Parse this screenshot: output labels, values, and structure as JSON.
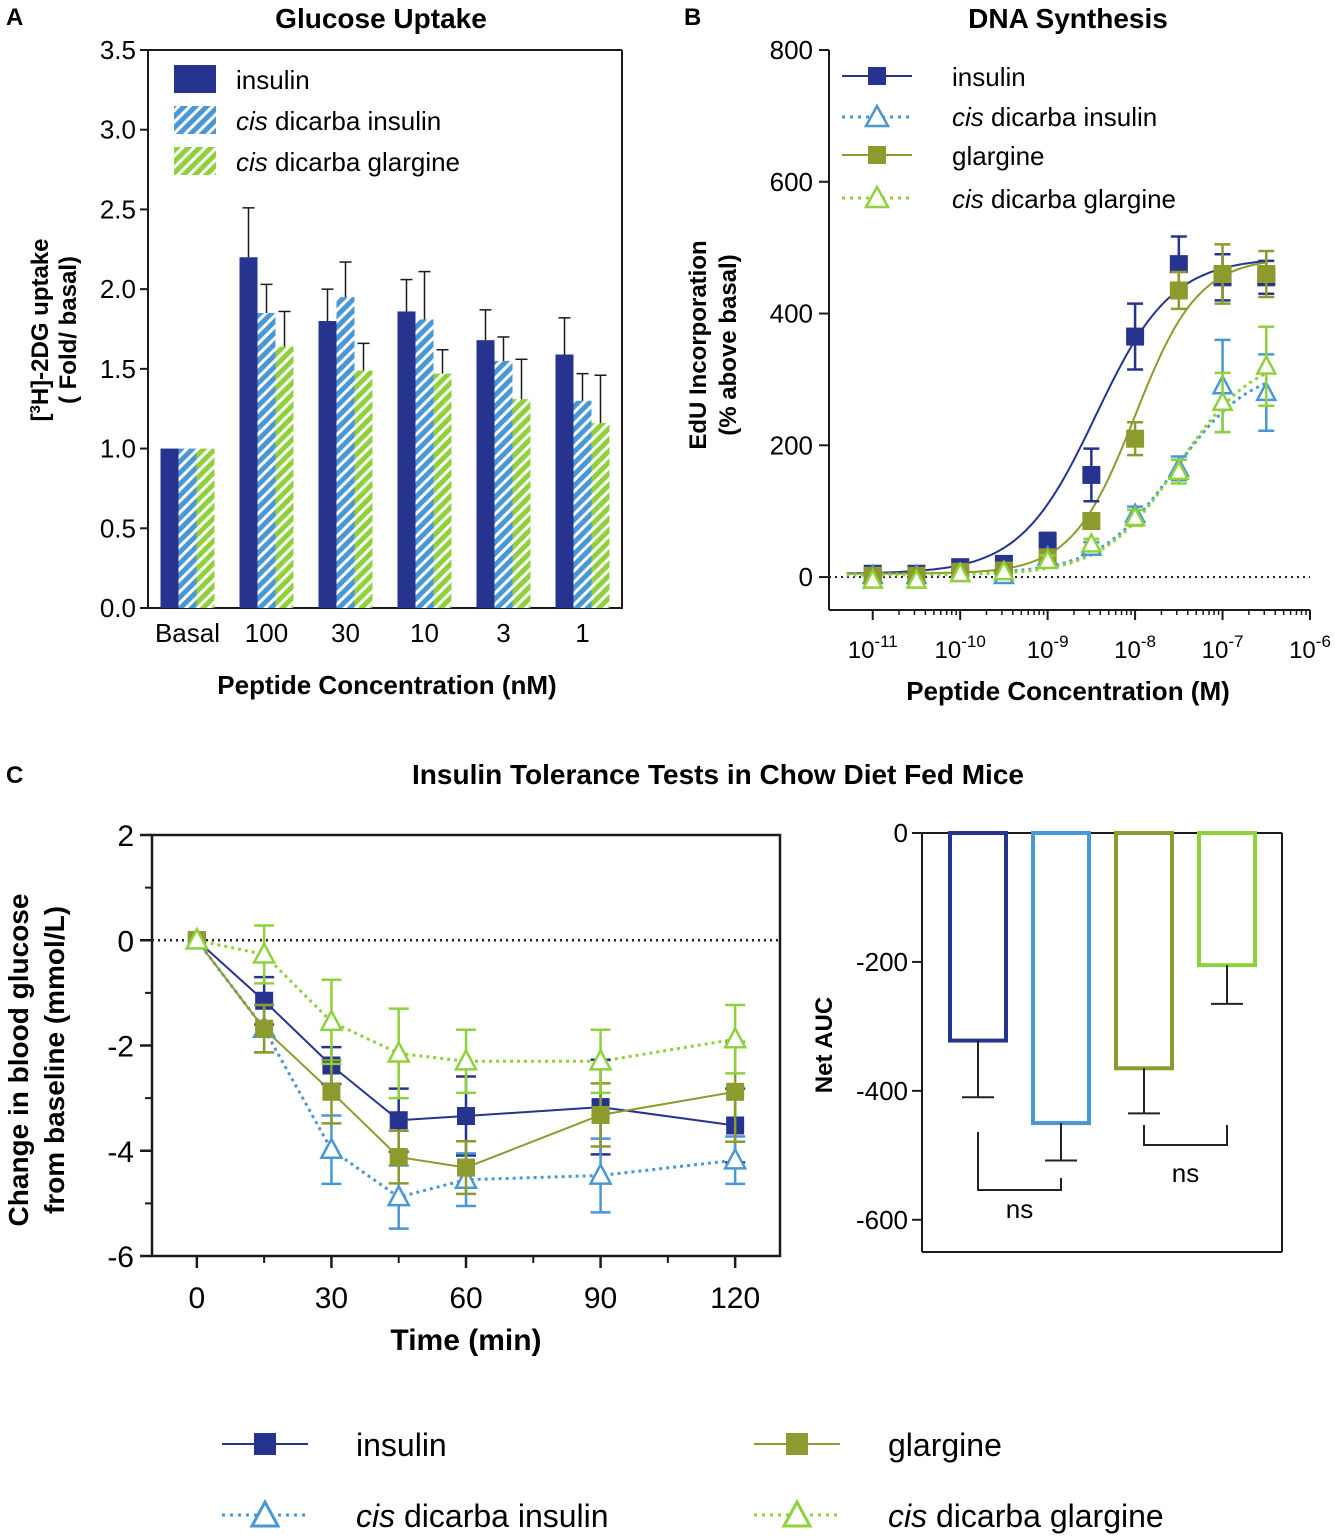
{
  "colors": {
    "insulin": "#26348f",
    "cis_insulin": "#4a97d6",
    "glargine": "#8c9a2e",
    "cis_glargine": "#8fd13c",
    "axis": "#1a1a1a"
  },
  "chart_data": [
    {
      "panel": "A",
      "type": "bar",
      "title": "Glucose Uptake",
      "xlabel": "Peptide Concentration (nM)",
      "ylabel_line1": "[3H]-2DG uptake",
      "ylabel_sup": "3",
      "ylabel_main": "H]-2DG uptake",
      "ylabel_line2": "( Fold/ basal)",
      "ylim": [
        0,
        3.5
      ],
      "yticks": [
        "0.0",
        "0.5",
        "1.0",
        "1.5",
        "2.0",
        "2.5",
        "3.0",
        "3.5"
      ],
      "categories": [
        "Basal",
        "100",
        "30",
        "10",
        "3",
        "1"
      ],
      "series": [
        {
          "name": "insulin",
          "legend_italic": "",
          "legend_rest": "insulin",
          "values": [
            1.0,
            2.2,
            1.8,
            1.86,
            1.68,
            1.59
          ],
          "err": [
            0,
            0.31,
            0.2,
            0.2,
            0.19,
            0.23
          ]
        },
        {
          "name": "cis dicarba insulin",
          "legend_italic": "cis",
          "legend_rest": " dicarba insulin",
          "values": [
            1.0,
            1.85,
            1.95,
            1.81,
            1.55,
            1.3
          ],
          "err": [
            0,
            0.18,
            0.22,
            0.3,
            0.15,
            0.17
          ]
        },
        {
          "name": "cis dicarba glargine",
          "legend_italic": "cis",
          "legend_rest": " dicarba glargine",
          "values": [
            1.0,
            1.64,
            1.49,
            1.47,
            1.31,
            1.16
          ],
          "err": [
            0,
            0.22,
            0.17,
            0.15,
            0.25,
            0.3
          ]
        }
      ]
    },
    {
      "panel": "B",
      "type": "scatter",
      "title": "DNA Synthesis",
      "xlabel": "Peptide Concentration (M)",
      "ylabel_line1": "EdU Incorporation",
      "ylabel_line2": "(% above basal)",
      "ylim": [
        -50,
        800
      ],
      "yticks": [
        "0",
        "200",
        "400",
        "600",
        "800"
      ],
      "xlim_log10": [
        -11.5,
        -6
      ],
      "xticks_base": "10",
      "xticks_exp": [
        "-11",
        "-10",
        "-9",
        "-8",
        "-7",
        "-6"
      ],
      "x_log10": [
        -11,
        -10.5,
        -10,
        -9.5,
        -9,
        -8.5,
        -8,
        -7.5,
        -7,
        -6.5
      ],
      "series": [
        {
          "name": "insulin",
          "legend_italic": "",
          "legend_rest": "insulin",
          "values": [
            5,
            5,
            15,
            20,
            55,
            155,
            365,
            475,
            455,
            455
          ],
          "err": [
            0,
            0,
            0,
            0,
            12,
            40,
            50,
            42,
            35,
            25
          ],
          "fit": {
            "bottom": 5,
            "top": 485,
            "logec50": -8.45,
            "hill": 1.0
          }
        },
        {
          "name": "cis dicarba insulin",
          "legend_italic": "cis",
          "legend_rest": " dicarba insulin",
          "values": [
            2,
            2,
            5,
            2,
            30,
            45,
            95,
            165,
            290,
            280
          ],
          "err": [
            0,
            0,
            0,
            0,
            8,
            8,
            12,
            18,
            70,
            58
          ],
          "fit": {
            "bottom": 5,
            "top": 320,
            "logec50": -7.55,
            "hill": 1.0
          }
        },
        {
          "name": "glargine",
          "legend_italic": "",
          "legend_rest": "glargine",
          "values": [
            2,
            2,
            8,
            10,
            30,
            85,
            210,
            435,
            460,
            460
          ],
          "err": [
            0,
            0,
            0,
            0,
            8,
            10,
            25,
            28,
            45,
            35
          ],
          "fit": {
            "bottom": 5,
            "top": 485,
            "logec50": -8.0,
            "hill": 1.2
          }
        },
        {
          "name": "cis dicarba glargine",
          "legend_italic": "cis",
          "legend_rest": " dicarba glargine",
          "values": [
            -5,
            -5,
            5,
            8,
            25,
            50,
            90,
            160,
            265,
            320
          ],
          "err": [
            0,
            0,
            0,
            0,
            8,
            8,
            12,
            18,
            45,
            60
          ],
          "fit": {
            "bottom": 3,
            "top": 340,
            "logec50": -7.5,
            "hill": 1.0
          }
        }
      ]
    },
    {
      "panel": "C",
      "type": "line",
      "title": "Insulin Tolerance Tests in Chow Diet Fed Mice",
      "xlabel": "Time (min)",
      "ylabel_line1": "Change in blood glucose",
      "ylabel_line2": "from baseline (mmol/L)",
      "ylim": [
        -6,
        2
      ],
      "yticks": [
        "2",
        "0",
        "-2",
        "-4",
        "-6"
      ],
      "xlim": [
        -10,
        130
      ],
      "x": [
        0,
        15,
        30,
        45,
        60,
        90,
        120
      ],
      "xticks": [
        "0",
        "30",
        "60",
        "90",
        "120"
      ],
      "series": [
        {
          "name": "insulin",
          "values": [
            0,
            -1.15,
            -2.38,
            -3.42,
            -3.34,
            -3.17,
            -3.52
          ],
          "err": [
            0,
            0.45,
            0.35,
            0.6,
            0.75,
            0.9,
            0.7
          ]
        },
        {
          "name": "cis dicarba insulin",
          "values": [
            0,
            -1.68,
            -3.98,
            -4.88,
            -4.55,
            -4.47,
            -4.18
          ],
          "err": [
            0,
            0.45,
            0.65,
            0.6,
            0.5,
            0.7,
            0.45
          ]
        },
        {
          "name": "glargine",
          "values": [
            0,
            -1.68,
            -2.88,
            -4.12,
            -4.32,
            -3.32,
            -2.88
          ],
          "err": [
            0,
            0.45,
            0.6,
            0.5,
            0.5,
            0.6,
            0.95
          ]
        },
        {
          "name": "cis dicarba glargine",
          "values": [
            0,
            -0.27,
            -1.55,
            -2.15,
            -2.3,
            -2.3,
            -1.88
          ],
          "err": [
            0,
            0.55,
            0.8,
            0.85,
            0.6,
            0.6,
            0.65
          ]
        }
      ]
    },
    {
      "panel": "C-AUC",
      "type": "bar",
      "ylabel": "Net AUC",
      "ylim": [
        -650,
        0
      ],
      "yticks": [
        "0",
        "-200",
        "-400",
        "-600"
      ],
      "categories": [
        "insulin",
        "cis dicarba insulin",
        "glargine",
        "cis dicarba glargine"
      ],
      "values": [
        -322,
        -450,
        -365,
        -205
      ],
      "err": [
        88,
        58,
        70,
        60
      ],
      "annotations": [
        "ns",
        "ns"
      ]
    }
  ],
  "panel_labels": [
    "A",
    "B",
    "C"
  ],
  "legend_bottom": [
    {
      "name": "insulin",
      "italic": "",
      "rest": "insulin"
    },
    {
      "name": "glargine",
      "italic": "",
      "rest": "glargine"
    },
    {
      "name": "cis dicarba insulin",
      "italic": "cis",
      "rest": " dicarba insulin"
    },
    {
      "name": "cis dicarba glargine",
      "italic": "cis",
      "rest": " dicarba glargine"
    }
  ]
}
